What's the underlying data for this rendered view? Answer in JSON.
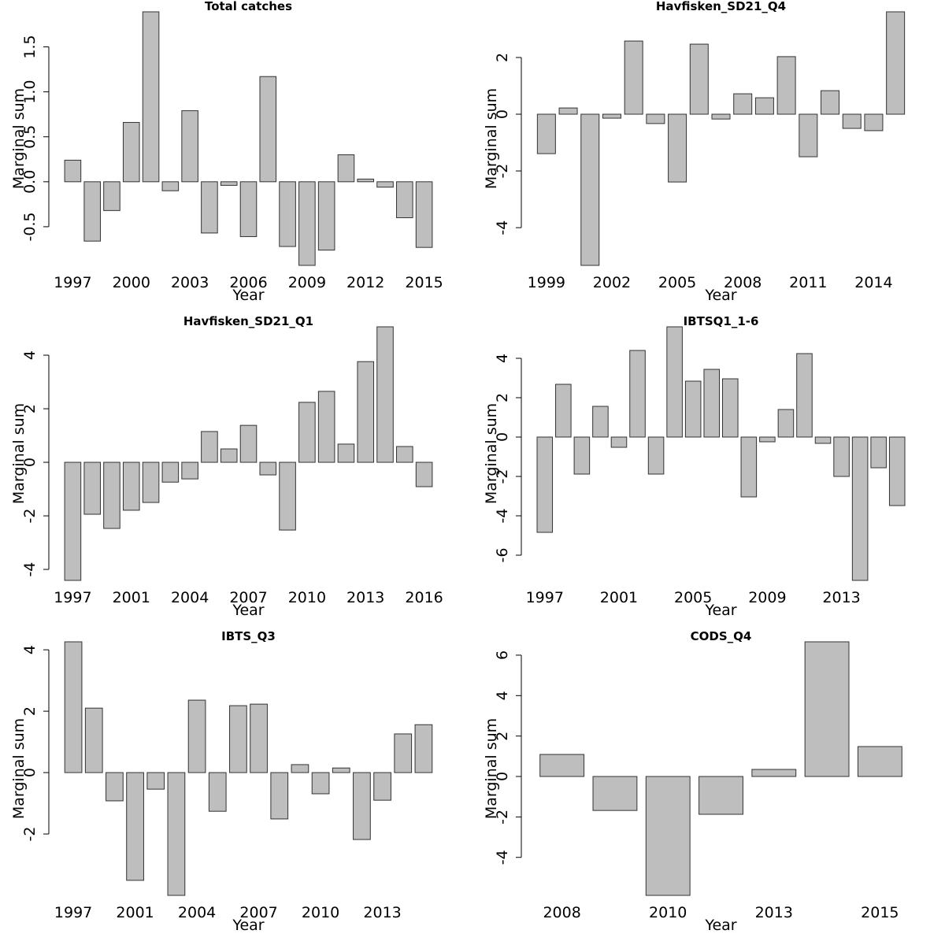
{
  "chart_data": [
    {
      "type": "bar",
      "title": "Total catches",
      "xlabel": "Year",
      "ylabel": "Marginal sum",
      "color": "#bebebe",
      "categories": [
        "1997",
        null,
        null,
        "2000",
        null,
        null,
        "2003",
        null,
        null,
        "2006",
        null,
        null,
        "2009",
        null,
        null,
        "2012",
        null,
        null,
        "2015"
      ],
      "values": [
        0.24,
        -0.66,
        -0.32,
        0.66,
        1.89,
        -0.1,
        0.79,
        -0.57,
        -0.04,
        -0.61,
        1.17,
        -0.72,
        -0.93,
        -0.76,
        0.3,
        0.03,
        -0.06,
        -0.4,
        -0.73
      ],
      "ylim": [
        -0.93,
        1.89
      ],
      "yticks": [
        -0.5,
        {
          "value": 0,
          "label": "0.0"
        },
        0.5,
        {
          "value": 1,
          "label": "1.0"
        },
        1.5
      ]
    },
    {
      "type": "bar",
      "title": "Havfisken_SD21_Q4",
      "xlabel": "Year",
      "ylabel": "Marginal sum",
      "color": "#bebebe",
      "categories": [
        "1999",
        null,
        null,
        "2002",
        null,
        null,
        "2005",
        null,
        null,
        "2008",
        null,
        null,
        "2011",
        null,
        null,
        "2014",
        null
      ],
      "values": [
        -1.39,
        0.22,
        -5.33,
        -0.14,
        2.58,
        -0.33,
        -2.39,
        2.47,
        -0.17,
        0.72,
        0.58,
        2.03,
        -1.5,
        0.83,
        -0.5,
        -0.58,
        3.61
      ],
      "ylim": [
        -5.33,
        3.61
      ],
      "yticks": [
        -4,
        -2,
        0,
        2
      ]
    },
    {
      "type": "bar",
      "title": "Havfisken_SD21_Q1",
      "xlabel": "Year",
      "ylabel": "Marginal sum",
      "color": "#bebebe",
      "categories": [
        "1997",
        null,
        null,
        "2001",
        null,
        null,
        "2004",
        null,
        null,
        "2007",
        null,
        null,
        "2010",
        null,
        null,
        "2013",
        null,
        null,
        "2016"
      ],
      "values": [
        -4.41,
        -1.94,
        -2.47,
        -1.79,
        -1.5,
        -0.74,
        -0.62,
        1.15,
        0.5,
        1.38,
        -0.47,
        -2.53,
        2.24,
        2.65,
        0.68,
        3.76,
        5.06,
        0.59,
        -0.91
      ],
      "ylim": [
        -4.41,
        5.06
      ],
      "yticks": [
        -4,
        -2,
        0,
        2,
        4
      ]
    },
    {
      "type": "bar",
      "title": "IBTSQ1_1-6",
      "xlabel": "Year",
      "ylabel": "Marginal sum",
      "color": "#bebebe",
      "categories": [
        "1997",
        null,
        null,
        null,
        "2001",
        null,
        null,
        null,
        "2005",
        null,
        null,
        null,
        "2009",
        null,
        null,
        null,
        "2013",
        null,
        null,
        null
      ],
      "values": [
        -4.84,
        2.68,
        -1.88,
        1.56,
        -0.52,
        4.4,
        -1.88,
        5.6,
        2.84,
        3.44,
        2.96,
        -3.04,
        -0.24,
        1.4,
        4.24,
        -0.32,
        -2.0,
        -7.28,
        -1.56,
        -3.48
      ],
      "ylim": [
        -7.28,
        5.6
      ],
      "yticks": [
        -6,
        -4,
        -2,
        0,
        2,
        4
      ]
    },
    {
      "type": "bar",
      "title": "IBTS_Q3",
      "xlabel": "Year",
      "ylabel": "Marginal sum",
      "color": "#bebebe",
      "categories": [
        "1997",
        null,
        null,
        "2001",
        null,
        null,
        "2004",
        null,
        null,
        "2007",
        null,
        null,
        "2010",
        null,
        null,
        "2013",
        null,
        null
      ],
      "values": [
        4.26,
        2.1,
        -0.92,
        -3.51,
        -0.54,
        -4.0,
        2.36,
        -1.26,
        2.18,
        2.23,
        -1.51,
        0.26,
        -0.69,
        0.15,
        -2.18,
        -0.9,
        1.26,
        1.56
      ],
      "ylim": [
        -4.0,
        4.26
      ],
      "yticks": [
        -2,
        0,
        2,
        4
      ]
    },
    {
      "type": "bar",
      "title": "CODS_Q4",
      "xlabel": "Year",
      "ylabel": "Marginal sum",
      "color": "#bebebe",
      "categories": [
        "2008",
        null,
        "2010",
        null,
        "2013",
        null,
        "2015"
      ],
      "values": [
        1.09,
        -1.68,
        -5.88,
        -1.87,
        0.35,
        6.66,
        1.48
      ],
      "ylim": [
        -5.88,
        6.66
      ],
      "yticks": [
        -4,
        -2,
        0,
        2,
        4,
        6
      ]
    }
  ]
}
